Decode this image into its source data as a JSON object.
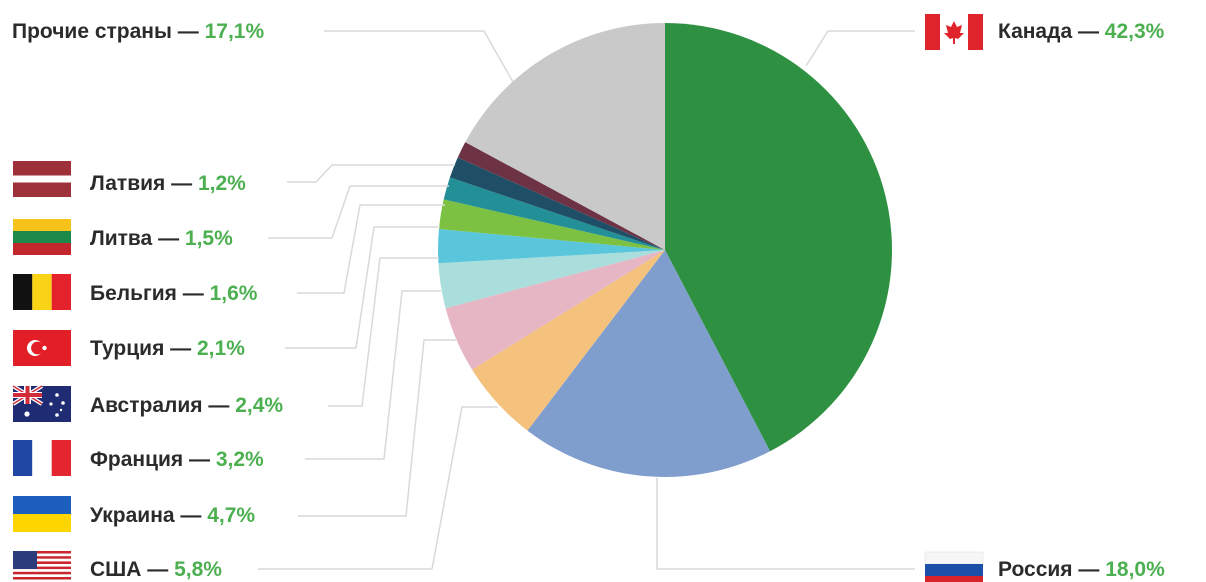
{
  "chart_data": {
    "type": "pie",
    "separator": " — ",
    "slices": [
      {
        "label": "Канада",
        "value": "42,3%",
        "share": 42.3,
        "color": "#2e9142"
      },
      {
        "label": "Россия",
        "value": "18,0%",
        "share": 18.0,
        "color": "#7f9ece"
      },
      {
        "label": "США",
        "value": "5,8%",
        "share": 5.8,
        "color": "#f4c27d"
      },
      {
        "label": "Украина",
        "value": "4,7%",
        "share": 4.7,
        "color": "#e6b6c5"
      },
      {
        "label": "Франция",
        "value": "3,2%",
        "share": 3.2,
        "color": "#a9dedc"
      },
      {
        "label": "Австралия",
        "value": "2,4%",
        "share": 2.4,
        "color": "#5ac6dc"
      },
      {
        "label": "Турция",
        "value": "2,1%",
        "share": 2.1,
        "color": "#7cc142"
      },
      {
        "label": "Бельгия",
        "value": "1,6%",
        "share": 1.6,
        "color": "#239097"
      },
      {
        "label": "Литва",
        "value": "1,5%",
        "share": 1.5,
        "color": "#1e4f66"
      },
      {
        "label": "Латвия",
        "value": "1,2%",
        "share": 1.2,
        "color": "#6d3345"
      },
      {
        "label": "Прочие страны",
        "value": "17,1%",
        "share": 17.1,
        "color": "#c9c9c9"
      }
    ],
    "flags": {
      "Канада": "canada-flag-icon",
      "Россия": "russia-flag-icon",
      "США": "usa-flag-icon",
      "Украина": "ukraine-flag-icon",
      "Франция": "france-flag-icon",
      "Австралия": "australia-flag-icon",
      "Турция": "turkey-flag-icon",
      "Бельгия": "belgium-flag-icon",
      "Литва": "lithuania-flag-icon",
      "Латвия": "latvia-flag-icon"
    }
  }
}
